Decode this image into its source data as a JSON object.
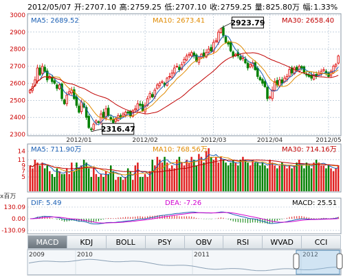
{
  "header": {
    "date": "2012/05/07",
    "open_label": "开:",
    "open": "2707.10",
    "high_label": "高:",
    "high": "2759.25",
    "low_label": "低:",
    "low": "2707.10",
    "close_label": "收:",
    "close": "2759.25",
    "volume_label": "量:",
    "volume": "825.80万",
    "change_label": "幅:",
    "change": "1.33%"
  },
  "tabs": [
    {
      "label": "MACD",
      "active": true
    },
    {
      "label": "KDJ",
      "active": false
    },
    {
      "label": "BOLL",
      "active": false
    },
    {
      "label": "PSY",
      "active": false
    },
    {
      "label": "OBV",
      "active": false
    },
    {
      "label": "RSI",
      "active": false
    },
    {
      "label": "WVAD",
      "active": false
    },
    {
      "label": "CCI",
      "active": false
    }
  ],
  "navigator": {
    "years": [
      "2009",
      "2010",
      "2011",
      "2012"
    ]
  },
  "colors": {
    "up": "#e02020",
    "down": "#008000",
    "ma5": "#1a5fb4",
    "ma10": "#e08a00",
    "ma30": "#c00000",
    "dif": "#1a5fb4",
    "dea": "#d000d0",
    "grid": "#9fb3c8",
    "axis_text": "#cc0000"
  },
  "chart_data": [
    {
      "type": "candlestick",
      "ma_labels": {
        "ma5": "MA5: 2689.52",
        "ma10": "MA10: 2673.41",
        "ma30": "MA30: 2658.40"
      },
      "ylim": [
        2300,
        3000
      ],
      "yticks": [
        2300,
        2400,
        2500,
        2600,
        2700,
        2800,
        2900,
        3000
      ],
      "xticks": [
        "2012/01",
        "2012/02",
        "2012/03",
        "2012/04",
        "2012/05"
      ],
      "annotations": [
        {
          "label": "2923.79",
          "value": 2923.79
        },
        {
          "label": "2316.47",
          "value": 2316.47
        }
      ],
      "close": [
        2560,
        2580,
        2620,
        2690,
        2650,
        2700,
        2670,
        2620,
        2640,
        2610,
        2600,
        2570,
        2590,
        2510,
        2480,
        2530,
        2550,
        2560,
        2510,
        2470,
        2430,
        2490,
        2460,
        2400,
        2340,
        2330,
        2360,
        2380,
        2370,
        2420,
        2400,
        2450,
        2410,
        2390,
        2370,
        2390,
        2410,
        2400,
        2420,
        2430,
        2425,
        2410,
        2440,
        2450,
        2480,
        2470,
        2440,
        2470,
        2510,
        2540,
        2520,
        2560,
        2590,
        2600,
        2610,
        2590,
        2630,
        2640,
        2660,
        2690,
        2700,
        2680,
        2710,
        2740,
        2760,
        2770,
        2780,
        2760,
        2730,
        2750,
        2770,
        2760,
        2780,
        2800,
        2790,
        2840,
        2850,
        2900,
        2920,
        2880,
        2840,
        2830,
        2790,
        2760,
        2770,
        2760,
        2740,
        2750,
        2720,
        2690,
        2710,
        2720,
        2680,
        2640,
        2620,
        2600,
        2580,
        2510,
        2520,
        2560,
        2610,
        2590,
        2620,
        2600,
        2630,
        2640,
        2680,
        2660,
        2690,
        2680,
        2700,
        2690,
        2660,
        2650,
        2640,
        2630,
        2650,
        2640,
        2660,
        2670,
        2680,
        2660,
        2640,
        2670,
        2700,
        2710,
        2760
      ],
      "volume": [
        9,
        8,
        11,
        10,
        9,
        10,
        8,
        9,
        7,
        6,
        5,
        8,
        7,
        6,
        6,
        8,
        6,
        10,
        7,
        10,
        8,
        9,
        11,
        10,
        8,
        5,
        8,
        6,
        5,
        6,
        5,
        7,
        6,
        9,
        7,
        4,
        5,
        5,
        4,
        5,
        8,
        7,
        4,
        9,
        10,
        5,
        5,
        6,
        5,
        7,
        11,
        9,
        12,
        11,
        10,
        12,
        10,
        8,
        9,
        8,
        11,
        12,
        10,
        9,
        11,
        10,
        12,
        11,
        9,
        13,
        12,
        10,
        14,
        15,
        12,
        11,
        12,
        10,
        12,
        11,
        10,
        9,
        10,
        11,
        10,
        9,
        11,
        12,
        11,
        10,
        9,
        11,
        10,
        10,
        9,
        10,
        9,
        8,
        11,
        10,
        9,
        8,
        9,
        10,
        9,
        8,
        9,
        8,
        9,
        10,
        11,
        9,
        8,
        10,
        9,
        8,
        10,
        11,
        10,
        9,
        9,
        8,
        9,
        8,
        7,
        8,
        9
      ],
      "volume_ylim": [
        0,
        16
      ],
      "volume_yticks": [
        5,
        7,
        9,
        11,
        14
      ],
      "volume_ma_labels": {
        "ma5": "MA5: 711.90万",
        "ma10": "MA10: 768.56万",
        "ma30": "MA30: 714.16万"
      }
    },
    {
      "type": "macd",
      "labels": {
        "dif": "DIF: 5.49",
        "dea": "DEA: -7.26",
        "macd": "MACD: 25.51"
      },
      "axis_unit": "x百万",
      "ylim": [
        -130.09,
        130.09
      ],
      "yticks": [
        "130.09",
        "0.00",
        "-130.09"
      ]
    }
  ]
}
